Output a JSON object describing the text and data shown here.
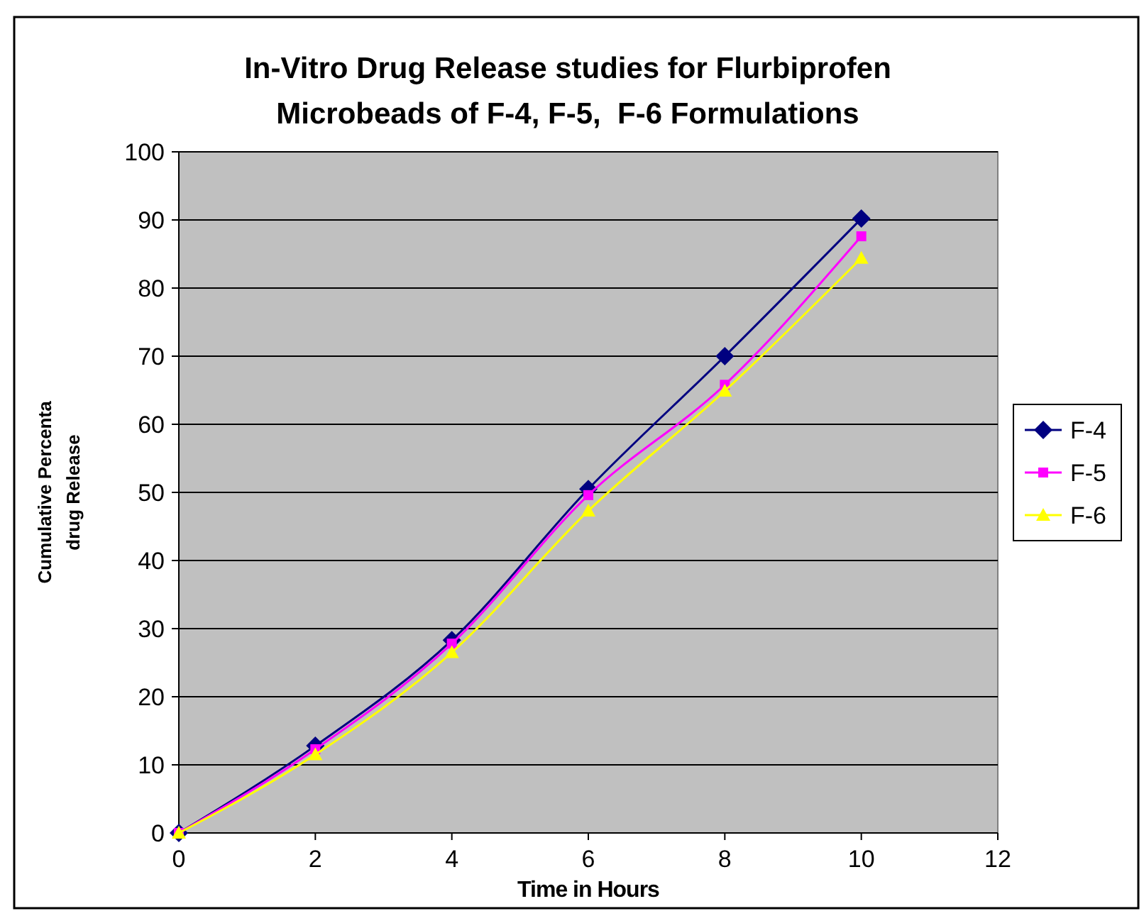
{
  "chart_data": {
    "type": "line",
    "title": "In-Vitro Drug Release studies for Flurbiprofen Microbeads of F-4, F-5,  F-6 Formulations",
    "xlabel": "Time in Hours",
    "ylabel": "Cumulative Percenta drug Release",
    "x": [
      0,
      2,
      4,
      6,
      8,
      10
    ],
    "xlim": [
      0,
      12
    ],
    "xticks": [
      0,
      2,
      4,
      6,
      8,
      10,
      12
    ],
    "ylim": [
      0,
      100
    ],
    "yticks": [
      0,
      10,
      20,
      30,
      40,
      50,
      60,
      70,
      80,
      90,
      100
    ],
    "grid": "y",
    "legend": "right",
    "series": [
      {
        "name": "F-4",
        "color": "#000080",
        "marker": "diamond",
        "values": [
          0,
          12.8,
          28.3,
          50.5,
          70,
          90.2
        ]
      },
      {
        "name": "F-5",
        "color": "#ff00ff",
        "marker": "square",
        "values": [
          0,
          12.3,
          27.8,
          49.6,
          65.8,
          87.6
        ]
      },
      {
        "name": "F-6",
        "color": "#ffff00",
        "marker": "triangle",
        "values": [
          0,
          11.5,
          26.5,
          47.3,
          64.9,
          84.4
        ]
      }
    ]
  }
}
